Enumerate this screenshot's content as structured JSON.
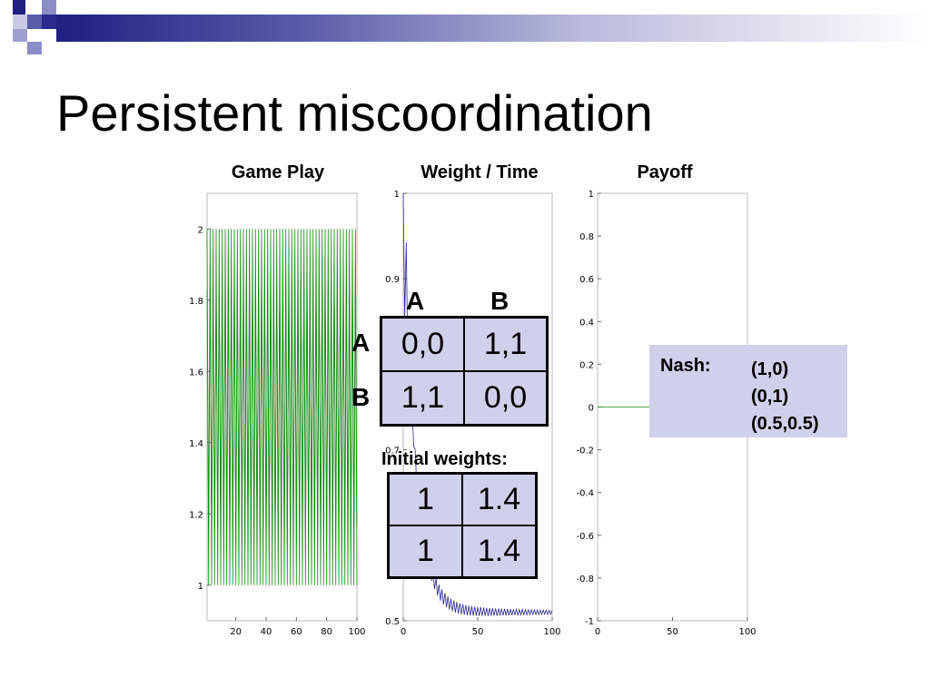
{
  "slide": {
    "title": "Persistent miscoordination"
  },
  "colors": {
    "header_dark": "#1f2080",
    "game_play_line": "#1a8a1a",
    "weight_line": "#2a2a8a",
    "table_fill": "#cfd0ea"
  },
  "payoff_matrix": {
    "col_labels": [
      "A",
      "B"
    ],
    "row_labels": [
      "A",
      "B"
    ],
    "cells": [
      [
        "0,0",
        "1,1"
      ],
      [
        "1,1",
        "0,0"
      ]
    ]
  },
  "initial_weights": {
    "title": "Initial weights:",
    "cells": [
      [
        "1",
        "1.4"
      ],
      [
        "1",
        "1.4"
      ]
    ]
  },
  "nash": {
    "label": "Nash:",
    "equilibria": [
      "(1,0)",
      "(0,1)",
      "(0.5,0.5)"
    ]
  },
  "chart_data": [
    {
      "type": "line",
      "title": "Game Play",
      "xlabel": "",
      "ylabel": "",
      "xlim": [
        1,
        100
      ],
      "ylim": [
        0.9,
        2.1
      ],
      "x_ticks": [
        20,
        40,
        60,
        80,
        100
      ],
      "y_ticks": [
        1,
        1.2,
        1.4,
        1.6,
        1.8,
        2
      ],
      "series": [
        {
          "description": "agent 1 action alternates between 1 and 2 every step",
          "pattern": "alternating",
          "low": 1,
          "high": 2,
          "n": 100
        },
        {
          "description": "agent 2 action alternates between 1.17 and 1.83 every step",
          "pattern": "alternating",
          "low": 1.17,
          "high": 1.83,
          "n": 100
        }
      ]
    },
    {
      "type": "line",
      "title": "Weight / Time",
      "xlabel": "",
      "ylabel": "",
      "xlim": [
        0,
        100
      ],
      "ylim": [
        0.5,
        1
      ],
      "x_ticks": [
        0,
        50,
        100
      ],
      "y_ticks": [
        0.5,
        0.7,
        0.9,
        1
      ],
      "series": [
        {
          "description": "weight oscillates and decays from 1 toward about 0.51",
          "pattern": "damped_oscillation",
          "start": 1,
          "end": 0.51,
          "n": 100
        }
      ]
    },
    {
      "type": "line",
      "title": "Payoff",
      "xlabel": "",
      "ylabel": "",
      "xlim": [
        0,
        100
      ],
      "ylim": [
        -1,
        1
      ],
      "x_ticks": [
        0,
        50,
        100
      ],
      "y_ticks": [
        -1,
        -0.8,
        -0.6,
        -0.4,
        -0.2,
        0,
        0.2,
        0.4,
        0.6,
        0.8,
        1
      ],
      "series": [
        {
          "description": "payoff constant at 0",
          "pattern": "constant",
          "value": 0,
          "n": 100
        }
      ]
    }
  ]
}
